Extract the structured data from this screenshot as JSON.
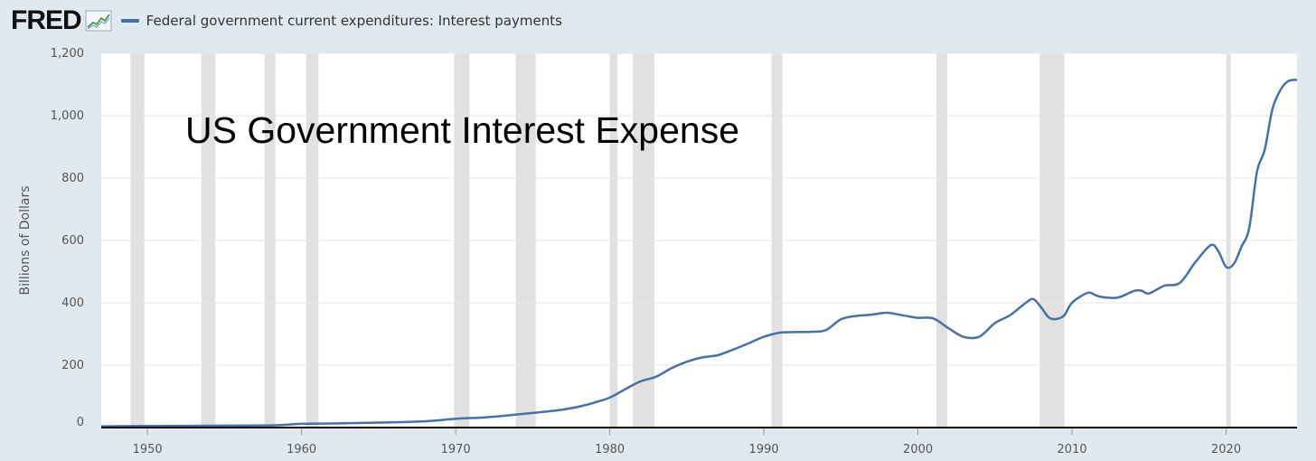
{
  "header": {
    "logo_text": "FRED",
    "logo_icon": "trend-line-icon"
  },
  "chart_data": {
    "type": "line",
    "title": "US Government Interest Expense",
    "ylabel": "Billions of Dollars",
    "xlabel": "",
    "xlim": [
      1947,
      2024.6
    ],
    "ylim": [
      0,
      1200
    ],
    "x_ticks": [
      "1950",
      "1960",
      "1970",
      "1980",
      "1990",
      "2000",
      "2010",
      "2020"
    ],
    "y_ticks": [
      "0",
      "200",
      "400",
      "600",
      "800",
      "1,000",
      "1,200"
    ],
    "grid": true,
    "legend_position": "top-left",
    "colors": {
      "series": "#4572a7",
      "recession": "#e1e1e1",
      "background": "#e1e9f0",
      "plot": "#ffffff"
    },
    "recessions": [
      [
        1948.9,
        1949.8
      ],
      [
        1953.5,
        1954.4
      ],
      [
        1957.6,
        1958.3
      ],
      [
        1960.3,
        1961.1
      ],
      [
        1969.9,
        1970.9
      ],
      [
        1973.9,
        1975.2
      ],
      [
        1980.0,
        1980.5
      ],
      [
        1981.5,
        1982.9
      ],
      [
        1990.5,
        1991.2
      ],
      [
        2001.2,
        2001.9
      ],
      [
        2007.9,
        2009.5
      ],
      [
        2020.0,
        2020.3
      ]
    ],
    "series": [
      {
        "name": "Federal government current expenditures: Interest payments",
        "x": [
          1947,
          1950,
          1955,
          1958,
          1959,
          1960,
          1962,
          1965,
          1968,
          1970,
          1972,
          1974,
          1976,
          1977,
          1978,
          1979,
          1980,
          1981,
          1982,
          1983,
          1984,
          1985,
          1986,
          1987,
          1988,
          1989,
          1990,
          1991,
          1992,
          1993,
          1994,
          1995,
          1996,
          1997,
          1998,
          1999,
          2000,
          2001,
          2002,
          2003,
          2004,
          2005,
          2006,
          2007,
          2007.5,
          2008,
          2008.5,
          2009,
          2009.5,
          2010,
          2011,
          2011.5,
          2012,
          2013,
          2014,
          2014.5,
          2015,
          2016,
          2017,
          2018,
          2019,
          2019.5,
          2020,
          2020.5,
          2021,
          2021.5,
          2022,
          2022.5,
          2023,
          2023.5,
          2024,
          2024.6
        ],
        "values": [
          4,
          5,
          6,
          7,
          9,
          12,
          13,
          16,
          20,
          28,
          33,
          42,
          52,
          58,
          67,
          80,
          96,
          123,
          148,
          163,
          190,
          211,
          225,
          232,
          250,
          270,
          291,
          304,
          306,
          307,
          312,
          347,
          358,
          362,
          368,
          360,
          352,
          350,
          318,
          290,
          292,
          335,
          361,
          400,
          412,
          385,
          353,
          348,
          360,
          400,
          432,
          425,
          418,
          417,
          438,
          439,
          430,
          455,
          464,
          530,
          585,
          565,
          515,
          525,
          580,
          640,
          820,
          890,
          1020,
          1080,
          1110,
          1115
        ]
      }
    ]
  }
}
